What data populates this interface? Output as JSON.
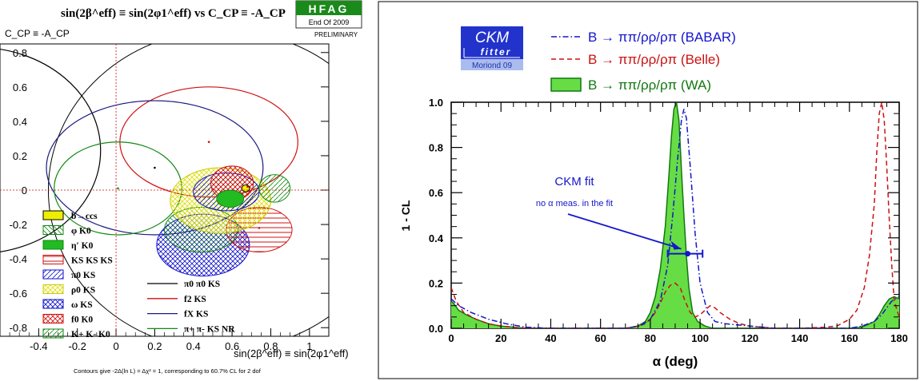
{
  "left_panel": {
    "title": "sin(2β^eff) ≡ sin(2φ1^eff)  vs  C_CP ≡ -A_CP",
    "badge": {
      "name": "HFAG",
      "period": "End Of 2009",
      "status": "PRELIMINARY"
    },
    "ylabel": "C_CP ≡ -A_CP",
    "xlabel": "sin(2β^eff) ≡ sin(2φ1^eff)",
    "footnote": "Contours give -2Δ(ln L) = Δχ² = 1, corresponding to 60.7% CL for 2 dof",
    "x_ticks": [
      "-0.4",
      "-0.2",
      "0",
      "0.2",
      "0.4",
      "0.6",
      "0.8",
      "1"
    ],
    "y_ticks": [
      "0.8",
      "0.6",
      "0.4",
      "0.2",
      "0",
      "-0.2",
      "-0.4",
      "-0.6",
      "-0.8"
    ],
    "legend_left": [
      "b→ccs",
      "φ K0",
      "η′ K0",
      "KS KS KS",
      "π0 KS",
      "ρ0 KS",
      "ω KS",
      "f0 K0",
      "K+ K- K0"
    ],
    "legend_right": [
      "π0 π0 KS",
      "f2 KS",
      "fX KS",
      "π+ π- KS NR"
    ],
    "colors": {
      "black": "#000000",
      "red": "#d01010",
      "navy": "#1a1a80",
      "green": "#118811",
      "yellow": "#dddd00",
      "blue": "#1010cc"
    }
  },
  "right_panel": {
    "logo": {
      "top": "CKM",
      "bottom": "fitter",
      "sub": "Moriond 09"
    },
    "legend": [
      "B → ππ/ρρ/ρπ (BABAR)",
      "B → ππ/ρρ/ρπ (Belle)",
      "B → ππ/ρρ/ρπ (WA)"
    ],
    "annotation_title": "CKM fit",
    "annotation_sub": "no α meas. in the fit",
    "ylabel": "1 - CL",
    "xlabel": "α  (deg)",
    "x_ticks": [
      "0",
      "20",
      "40",
      "60",
      "80",
      "100",
      "120",
      "140",
      "160",
      "180"
    ],
    "y_ticks": [
      "0.0",
      "0.2",
      "0.4",
      "0.6",
      "0.8",
      "1.0"
    ],
    "colors": {
      "babar": "#1515cc",
      "belle": "#cc1111",
      "wa_fill": "#66dd44",
      "wa_line": "#117711",
      "logo_bg": "#2233cc",
      "logo_sub_bg": "#aabbee"
    }
  },
  "chart_data": [
    {
      "type": "scatter",
      "title": "sin(2β^eff) ≡ sin(2φ1^eff) vs C_CP ≡ -A_CP",
      "xlabel": "sin(2β^eff) ≡ sin(2φ1^eff)",
      "ylabel": "C_CP ≡ -A_CP",
      "xlim": [
        -0.6,
        1.1
      ],
      "ylim": [
        -0.85,
        0.85
      ],
      "reference_lines": {
        "x": 0.0,
        "y": 0.0
      },
      "series": [
        {
          "name": "b→ccs",
          "x": 0.67,
          "y": 0.01,
          "sx": 0.02,
          "sy": 0.02
        },
        {
          "name": "φ K0",
          "x": 0.44,
          "y": -0.23,
          "sx": 0.19,
          "sy": 0.13
        },
        {
          "name": "η′ K0",
          "x": 0.59,
          "y": -0.05,
          "sx": 0.07,
          "sy": 0.05
        },
        {
          "name": "KS KS KS",
          "x": 0.74,
          "y": -0.23,
          "sx": 0.17,
          "sy": 0.13
        },
        {
          "name": "π0 KS",
          "x": 0.57,
          "y": -0.01,
          "sx": 0.17,
          "sy": 0.11
        },
        {
          "name": "ρ0 KS",
          "x": 0.54,
          "y": -0.06,
          "sx": 0.26,
          "sy": 0.19
        },
        {
          "name": "ω KS",
          "x": 0.45,
          "y": -0.32,
          "sx": 0.24,
          "sy": 0.18
        },
        {
          "name": "f0 K0",
          "x": 0.6,
          "y": 0.04,
          "sx": 0.11,
          "sy": 0.1
        },
        {
          "name": "K+ K- K0",
          "x": 0.82,
          "y": 0.01,
          "sx": 0.08,
          "sy": 0.08
        },
        {
          "name": "π0 π0 KS",
          "x": -0.72,
          "y": 0.23,
          "sx": 0.64,
          "sy": 0.6
        },
        {
          "name": "f2 KS",
          "x": 0.48,
          "y": 0.28,
          "sx": 0.46,
          "sy": 0.32
        },
        {
          "name": "fX KS",
          "x": 0.2,
          "y": 0.13,
          "sx": 0.56,
          "sy": 0.39
        },
        {
          "name": "π+ π- KS NR",
          "x": 0.01,
          "y": 0.01,
          "sx": 0.33,
          "sy": 0.27
        }
      ]
    },
    {
      "type": "line",
      "xlabel": "α  (deg)",
      "ylabel": "1 - CL",
      "xlim": [
        0,
        180
      ],
      "ylim": [
        0,
        1.0
      ],
      "series": [
        {
          "name": "B → ππ/ρρ/ρπ (BABAR)",
          "x": [
            0,
            3,
            8,
            15,
            22,
            30,
            40,
            50,
            60,
            70,
            76,
            80,
            84,
            87,
            89,
            91,
            92.5,
            93.5,
            94.5,
            96,
            98,
            100,
            103,
            106,
            110,
            115,
            120,
            130,
            140,
            150,
            160,
            165,
            170,
            173,
            175,
            177,
            180
          ],
          "y": [
            0.13,
            0.1,
            0.07,
            0.04,
            0.02,
            0.005,
            0,
            0,
            0,
            0,
            0.01,
            0.04,
            0.12,
            0.28,
            0.5,
            0.75,
            0.92,
            0.97,
            0.93,
            0.72,
            0.42,
            0.2,
            0.07,
            0.03,
            0.02,
            0.015,
            0.01,
            0,
            0,
            0,
            0,
            0.01,
            0.03,
            0.06,
            0.09,
            0.12,
            0.14
          ]
        },
        {
          "name": "B → ππ/ρρ/ρπ (Belle)",
          "x": [
            0,
            2,
            5,
            10,
            15,
            20,
            30,
            40,
            60,
            70,
            75,
            78,
            80,
            82,
            84,
            86,
            88,
            90,
            92,
            94,
            96,
            98,
            100,
            102,
            104,
            106,
            108,
            112,
            116,
            120,
            130,
            140,
            150,
            155,
            160,
            163,
            166,
            168,
            170,
            171,
            172,
            173,
            174,
            175,
            176,
            177,
            178,
            180
          ],
          "y": [
            0.18,
            0.12,
            0.07,
            0.04,
            0.02,
            0.01,
            0,
            0,
            0,
            0,
            0.01,
            0.02,
            0.04,
            0.07,
            0.11,
            0.16,
            0.19,
            0.2,
            0.18,
            0.12,
            0.07,
            0.05,
            0.06,
            0.08,
            0.1,
            0.09,
            0.07,
            0.04,
            0.02,
            0.01,
            0,
            0,
            0.005,
            0.01,
            0.04,
            0.08,
            0.18,
            0.32,
            0.55,
            0.78,
            0.95,
            1.0,
            0.92,
            0.72,
            0.48,
            0.28,
            0.12,
            0.05
          ]
        },
        {
          "name": "B → ππ/ρρ/ρπ (WA)",
          "x": [
            0,
            1,
            3,
            6,
            10,
            15,
            20,
            25,
            30,
            40,
            60,
            70,
            75,
            78,
            80,
            82,
            84,
            86,
            87.5,
            88.5,
            89.5,
            90.5,
            91.5,
            92.5,
            93.5,
            94.5,
            95.5,
            97,
            99,
            102,
            105,
            110,
            120,
            140,
            160,
            165,
            170,
            172,
            174,
            176,
            178,
            180
          ],
          "y": [
            0.12,
            0.11,
            0.08,
            0.06,
            0.04,
            0.02,
            0.01,
            0.005,
            0,
            0,
            0,
            0,
            0.01,
            0.03,
            0.07,
            0.14,
            0.26,
            0.45,
            0.68,
            0.85,
            0.97,
            1.0,
            0.92,
            0.7,
            0.5,
            0.32,
            0.18,
            0.07,
            0.03,
            0.01,
            0,
            0,
            0,
            0,
            0,
            0.005,
            0.03,
            0.06,
            0.1,
            0.13,
            0.14,
            0.13
          ]
        }
      ],
      "annotations": [
        {
          "text": "CKM fit",
          "x": 96,
          "y": 0.66
        },
        {
          "text": "no α meas. in the fit",
          "x": 96,
          "y": 0.56
        },
        {
          "type": "errorbar",
          "x": 95,
          "y": 0.33,
          "xmin": 87,
          "xmax": 101
        }
      ]
    }
  ]
}
